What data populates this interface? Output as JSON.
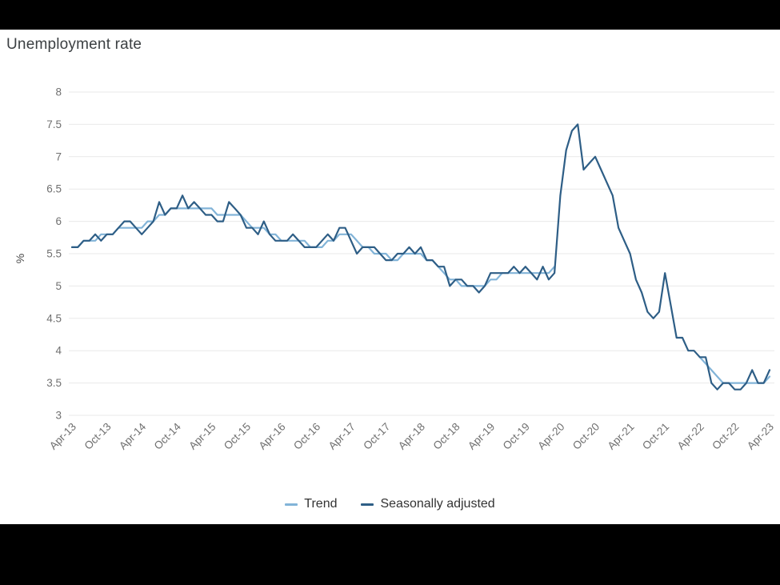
{
  "title": "Unemployment rate",
  "legend": [
    {
      "label": "Trend",
      "color": "#82b4d8"
    },
    {
      "label": "Seasonally adjusted",
      "color": "#2e5e86"
    }
  ],
  "colors": {
    "background": "#ffffff",
    "letterbox": "#000000",
    "grid": "#e9e9e9",
    "tick_text": "#707070",
    "title_text": "#3c4043",
    "trend": "#82b4d8",
    "seasonally_adjusted": "#2e5e86"
  },
  "chart_data": {
    "type": "line",
    "title": "Unemployment rate",
    "xlabel": "",
    "ylabel": "%",
    "ylim": [
      3,
      8
    ],
    "y_ticks": [
      8,
      7.5,
      7,
      6.5,
      6,
      5.5,
      5,
      4.5,
      4,
      3.5,
      3
    ],
    "grid": "horizontal",
    "legend_position": "bottom",
    "x_start": "Apr-13",
    "x_end": "Apr-23",
    "frequency": "monthly",
    "n_points": 121,
    "x_tick_every": 6,
    "x_tick_labels": [
      "Apr-13",
      "Oct-13",
      "Apr-14",
      "Oct-14",
      "Apr-15",
      "Oct-15",
      "Apr-16",
      "Oct-16",
      "Apr-17",
      "Oct-17",
      "Apr-18",
      "Oct-18",
      "Apr-19",
      "Oct-19",
      "Apr-20",
      "Oct-20",
      "Apr-21",
      "Oct-21",
      "Apr-22",
      "Oct-22",
      "Apr-23"
    ],
    "series": [
      {
        "name": "Trend",
        "color": "#82b4d8",
        "values": [
          5.6,
          5.6,
          5.7,
          5.7,
          5.7,
          5.8,
          5.8,
          5.8,
          5.9,
          5.9,
          5.9,
          5.9,
          5.9,
          6.0,
          6.0,
          6.1,
          6.1,
          6.2,
          6.2,
          6.2,
          6.2,
          6.2,
          6.2,
          6.2,
          6.2,
          6.1,
          6.1,
          6.1,
          6.1,
          6.1,
          6.0,
          5.9,
          5.9,
          5.9,
          5.8,
          5.8,
          5.7,
          5.7,
          5.7,
          5.7,
          5.7,
          5.6,
          5.6,
          5.6,
          5.7,
          5.7,
          5.8,
          5.8,
          5.8,
          5.7,
          5.6,
          5.6,
          5.5,
          5.5,
          5.5,
          5.4,
          5.4,
          5.5,
          5.5,
          5.5,
          5.5,
          5.4,
          5.4,
          5.3,
          5.2,
          5.1,
          5.1,
          5.0,
          5.0,
          5.0,
          5.0,
          5.0,
          5.1,
          5.1,
          5.2,
          5.2,
          5.2,
          5.2,
          5.2,
          5.2,
          5.2,
          5.2,
          5.2,
          5.3,
          null,
          null,
          null,
          null,
          null,
          null,
          null,
          null,
          null,
          null,
          null,
          null,
          null,
          null,
          null,
          null,
          null,
          null,
          null,
          null,
          null,
          null,
          null,
          null,
          3.9,
          3.8,
          3.7,
          3.6,
          3.5,
          3.5,
          3.5,
          3.5,
          3.5,
          3.5,
          3.5,
          3.5,
          3.6
        ]
      },
      {
        "name": "Seasonally adjusted",
        "color": "#2e5e86",
        "values": [
          5.6,
          5.6,
          5.7,
          5.7,
          5.8,
          5.7,
          5.8,
          5.8,
          5.9,
          6.0,
          6.0,
          5.9,
          5.8,
          5.9,
          6.0,
          6.3,
          6.1,
          6.2,
          6.2,
          6.4,
          6.2,
          6.3,
          6.2,
          6.1,
          6.1,
          6.0,
          6.0,
          6.3,
          6.2,
          6.1,
          5.9,
          5.9,
          5.8,
          6.0,
          5.8,
          5.7,
          5.7,
          5.7,
          5.8,
          5.7,
          5.6,
          5.6,
          5.6,
          5.7,
          5.8,
          5.7,
          5.9,
          5.9,
          5.7,
          5.5,
          5.6,
          5.6,
          5.6,
          5.5,
          5.4,
          5.4,
          5.5,
          5.5,
          5.6,
          5.5,
          5.6,
          5.4,
          5.4,
          5.3,
          5.3,
          5.0,
          5.1,
          5.1,
          5.0,
          5.0,
          4.9,
          5.0,
          5.2,
          5.2,
          5.2,
          5.2,
          5.3,
          5.2,
          5.3,
          5.2,
          5.1,
          5.3,
          5.1,
          5.2,
          6.4,
          7.1,
          7.4,
          7.5,
          6.8,
          6.9,
          7.0,
          6.8,
          6.6,
          6.4,
          5.9,
          5.7,
          5.5,
          5.1,
          4.9,
          4.6,
          4.5,
          4.6,
          5.2,
          4.7,
          4.2,
          4.2,
          4.0,
          4.0,
          3.9,
          3.9,
          3.5,
          3.4,
          3.5,
          3.5,
          3.4,
          3.4,
          3.5,
          3.7,
          3.5,
          3.5,
          3.7
        ]
      }
    ]
  }
}
